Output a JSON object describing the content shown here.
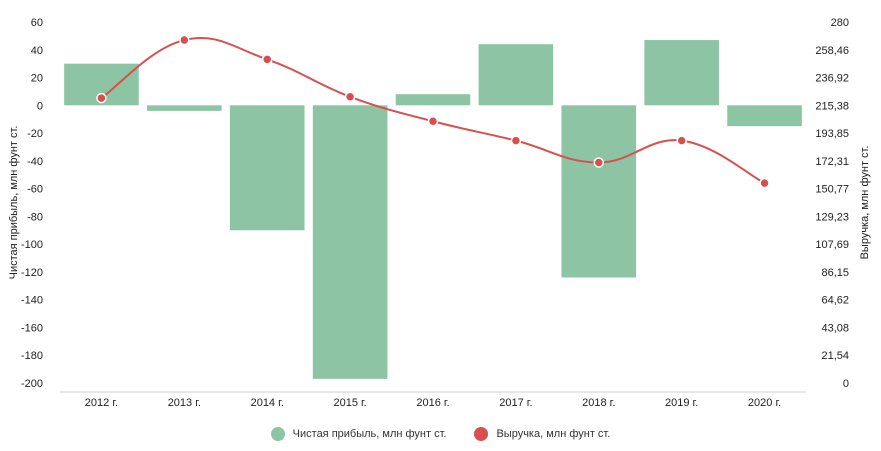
{
  "chart_data": {
    "type": "bar",
    "categories": [
      "2012 г.",
      "2013 г.",
      "2014 г.",
      "2015 г.",
      "2016 г.",
      "2017 г.",
      "2018 г.",
      "2019 г.",
      "2020 г."
    ],
    "series": [
      {
        "name": "Чистая прибыль, млн фунт ст.",
        "type": "bar",
        "axis": "left",
        "color": "#8dc4a4",
        "values": [
          30,
          -4,
          -90,
          -197,
          8,
          44,
          -124,
          47,
          -15
        ]
      },
      {
        "name": "Выручка, млн фунт ст.",
        "type": "line",
        "axis": "right",
        "color": "#d94f4f",
        "values": [
          221,
          266,
          251,
          222,
          203,
          188,
          171,
          188,
          155
        ]
      }
    ],
    "ylabel": "Чистая прибыль, млн фунт ст.",
    "y2label": "Выручка, млн фунт ст.",
    "ylim": [
      -200,
      60
    ],
    "y2lim": [
      0,
      280
    ],
    "yticks": [
      "60",
      "40",
      "20",
      "0",
      "-20",
      "-40",
      "-60",
      "-80",
      "-100",
      "-120",
      "-140",
      "-160",
      "-180",
      "-200"
    ],
    "y2ticks": [
      "280",
      "258,46",
      "236,92",
      "215,38",
      "193,85",
      "172,31",
      "150,77",
      "129,23",
      "107,69",
      "86,15",
      "64,62",
      "43,08",
      "21,54",
      "0"
    ],
    "grid": false,
    "legend_position": "bottom"
  }
}
